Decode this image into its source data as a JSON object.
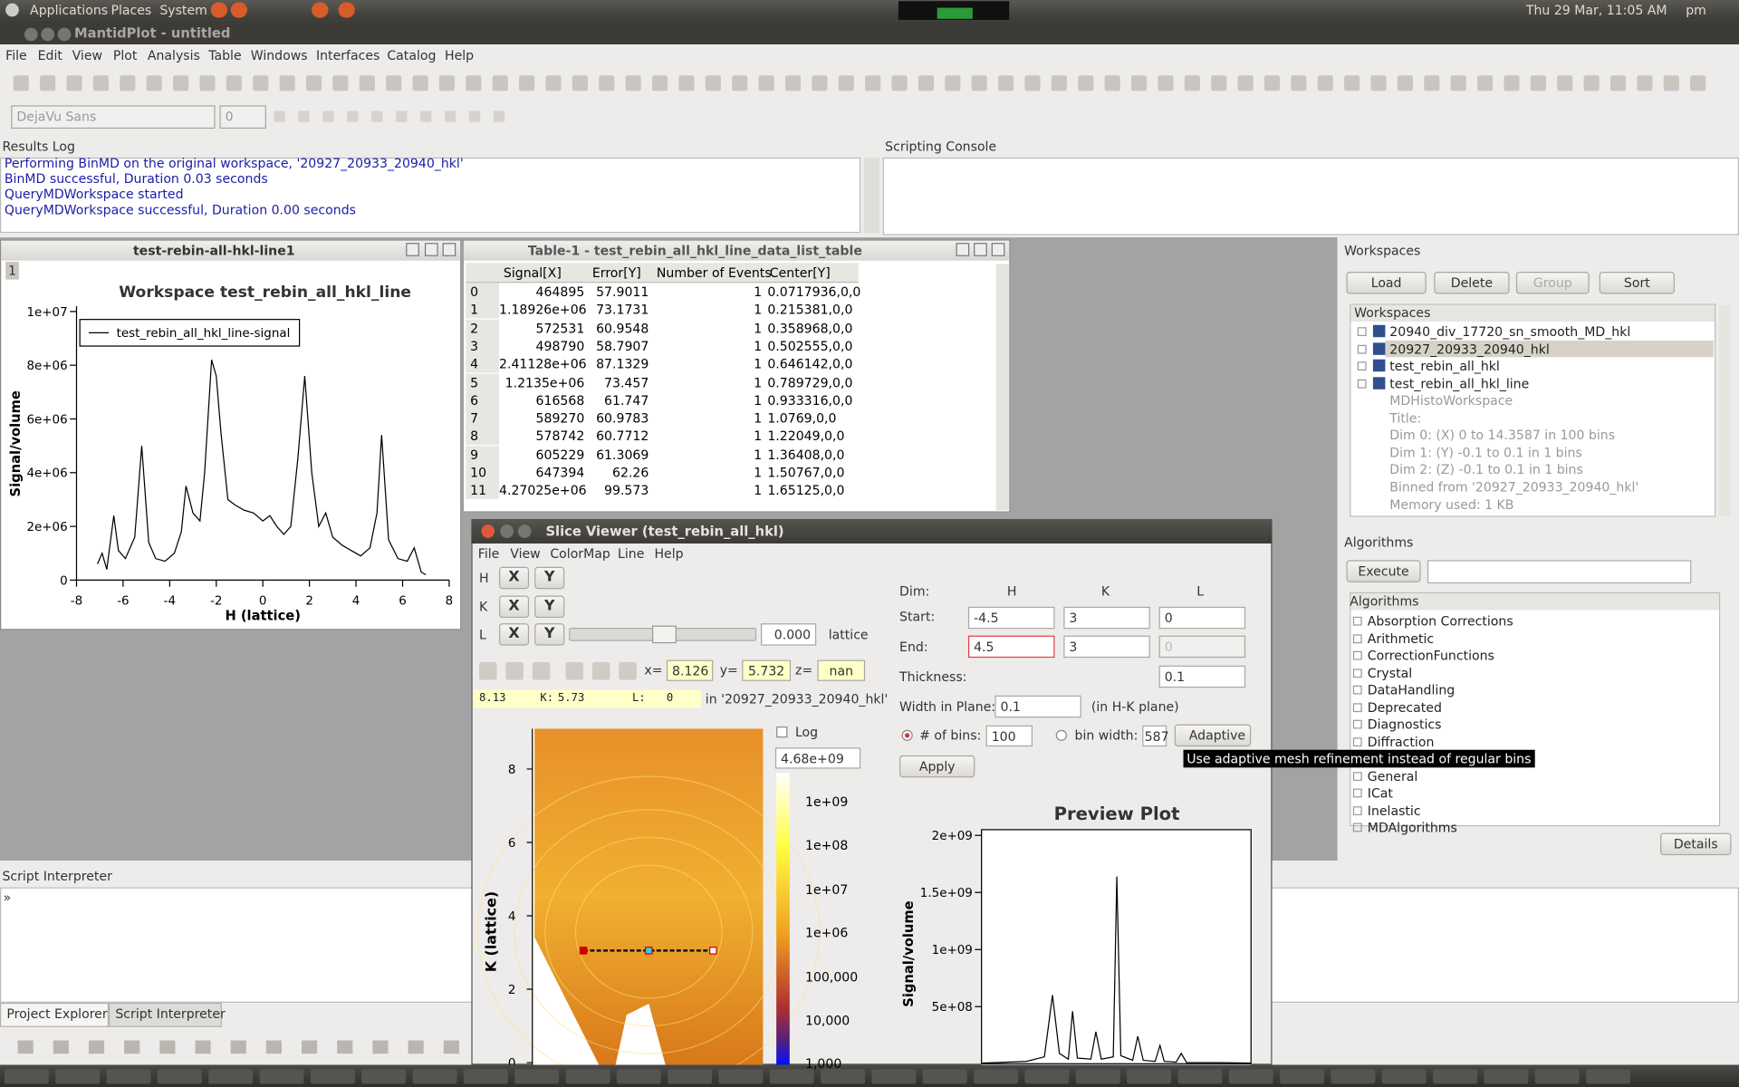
{
  "top_panel": {
    "menus": [
      "Applications",
      "Places",
      "System"
    ],
    "clock": "Thu 29 Mar, 11:05 AM",
    "user": "pm"
  },
  "window_title": "MantidPlot - untitled",
  "menu_bar": [
    "File",
    "Edit",
    "View",
    "Plot",
    "Analysis",
    "Table",
    "Windows",
    "Interfaces",
    "Catalog",
    "Help"
  ],
  "format_bar": {
    "font": "DejaVu Sans",
    "size": "0"
  },
  "results_log": {
    "title": "Results Log",
    "lines": [
      "Performing BinMD on the original workspace, '20927_20933_20940_hkl'",
      "BinMD successful, Duration 0.03 seconds",
      "QueryMDWorkspace started",
      "QueryMDWorkspace successful, Duration 0.00 seconds"
    ]
  },
  "scripting_console": {
    "title": "Scripting Console"
  },
  "plot_window": {
    "title": "test-rebin-all-hkl-line1",
    "index": "1",
    "chart_data": {
      "type": "line",
      "title": "Workspace test_rebin_all_hkl_line",
      "xlabel": "H (lattice)",
      "ylabel": "Signal/volume",
      "xlim": [
        -8,
        8
      ],
      "ylim": [
        0,
        10200000
      ],
      "xticks": [
        -8,
        -6,
        -4,
        -2,
        0,
        2,
        4,
        6,
        8
      ],
      "yticks": [
        0,
        {
          "value": 2000000,
          "label": "2e+06"
        },
        {
          "value": 4000000,
          "label": "4e+06"
        },
        {
          "value": 6000000,
          "label": "6e+06"
        },
        {
          "value": 8000000,
          "label": "8e+06"
        },
        {
          "value": 10000000,
          "label": "1e+07"
        }
      ],
      "series": [
        {
          "name": "test_rebin_all_hkl_line-signal",
          "color": "#000000",
          "x": [
            -7.1,
            -6.9,
            -6.7,
            -6.4,
            -6.2,
            -5.9,
            -5.5,
            -5.2,
            -4.9,
            -4.6,
            -4.2,
            -3.8,
            -3.5,
            -3.3,
            -3.0,
            -2.7,
            -2.5,
            -2.2,
            -2.0,
            -1.8,
            -1.5,
            -1.2,
            -0.8,
            -0.4,
            0.0,
            0.3,
            0.6,
            0.9,
            1.2,
            1.5,
            1.8,
            2.1,
            2.4,
            2.7,
            3.0,
            3.4,
            3.8,
            4.2,
            4.6,
            4.9,
            5.1,
            5.4,
            5.8,
            6.2,
            6.5,
            6.8,
            7.0
          ],
          "values": [
            600000,
            1000000,
            400000,
            2400000,
            1100000,
            800000,
            1600000,
            5000000,
            1400000,
            800000,
            700000,
            1000000,
            1800000,
            3500000,
            2500000,
            2200000,
            4000000,
            8200000,
            7600000,
            5500000,
            3000000,
            2800000,
            2600000,
            2500000,
            2200000,
            2400000,
            2000000,
            1700000,
            2000000,
            4500000,
            7600000,
            4000000,
            2000000,
            2500000,
            1600000,
            1300000,
            1100000,
            900000,
            1200000,
            2500000,
            5400000,
            1500000,
            800000,
            700000,
            1200000,
            300000,
            200000
          ]
        }
      ]
    }
  },
  "table_window": {
    "title": "Table-1 - test_rebin_all_hkl_line_data_list_table",
    "columns": [
      "Signal[X]",
      "Error[Y]",
      "Number of Events",
      "Center[Y]"
    ],
    "rows": [
      [
        "0",
        "464895",
        "57.9011",
        "1",
        "0.0717936,0,0"
      ],
      [
        "1",
        "1.18926e+06",
        "73.1731",
        "1",
        "0.215381,0,0"
      ],
      [
        "2",
        "572531",
        "60.9548",
        "1",
        "0.358968,0,0"
      ],
      [
        "3",
        "498790",
        "58.7907",
        "1",
        "0.502555,0,0"
      ],
      [
        "4",
        "2.41128e+06",
        "87.1329",
        "1",
        "0.646142,0,0"
      ],
      [
        "5",
        "1.2135e+06",
        "73.457",
        "1",
        "0.789729,0,0"
      ],
      [
        "6",
        "616568",
        "61.747",
        "1",
        "0.933316,0,0"
      ],
      [
        "7",
        "589270",
        "60.9783",
        "1",
        "1.0769,0,0"
      ],
      [
        "8",
        "578742",
        "60.7712",
        "1",
        "1.22049,0,0"
      ],
      [
        "9",
        "605229",
        "61.3069",
        "1",
        "1.36408,0,0"
      ],
      [
        "10",
        "647394",
        "62.26",
        "1",
        "1.50767,0,0"
      ],
      [
        "11",
        "4.27025e+06",
        "99.573",
        "1",
        "1.65125,0,0"
      ]
    ]
  },
  "workspaces": {
    "title": "Workspaces",
    "buttons": [
      "Load",
      "Delete",
      "Group",
      "Sort"
    ],
    "header": "Workspaces",
    "items": [
      "20940_div_17720_sn_smooth_MD_hkl",
      "20927_20933_20940_hkl",
      "test_rebin_all_hkl",
      "test_rebin_all_hkl_line"
    ],
    "details": [
      "MDHistoWorkspace",
      "Title:",
      "Dim 0: (X) 0 to 14.3587 in 100 bins",
      "Dim 1: (Y) -0.1 to 0.1 in 1 bins",
      "Dim 2: (Z) -0.1 to 0.1 in 1 bins",
      "Binned from '20927_20933_20940_hkl'",
      "Memory used: 1 KB"
    ]
  },
  "algorithms": {
    "title": "Algorithms",
    "execute": "Execute",
    "header": "Algorithms",
    "items": [
      "Absorption Corrections",
      "Arithmetic",
      "CorrectionFunctions",
      "Crystal",
      "DataHandling",
      "Deprecated",
      "Diagnostics",
      "Diffraction",
      "General",
      "ICat",
      "Inelastic",
      "MDAlgorithms"
    ],
    "details": "Details"
  },
  "slice_viewer": {
    "title": "Slice Viewer (test_rebin_all_hkl)",
    "menus": [
      "File",
      "View",
      "ColorMap",
      "Line",
      "Help"
    ],
    "dims": [
      "H",
      "K",
      "L"
    ],
    "axis_buttons": [
      "X",
      "Y"
    ],
    "slice_value": "0.000",
    "slice_unit": "lattice",
    "coords": {
      "x_label": "x=",
      "x": "8.126",
      "y_label": "y=",
      "y": "5.732",
      "z_label": "z=",
      "z": "nan"
    },
    "status": {
      "h": "8.13",
      "k_label": "K:",
      "k": "5.73",
      "l_label": "L:",
      "l": "0",
      "source": "in '20927_20933_20940_hkl'"
    },
    "log": "Log",
    "color_max": "4.68e+09",
    "colorbar_labels": [
      "1e+09",
      "1e+08",
      "1e+07",
      "1e+06",
      "100,000",
      "10,000",
      "1,000"
    ],
    "image_ylabel": "K (lattice)",
    "image_ylim": [
      0,
      8.1
    ],
    "image_yticks": [
      0,
      2,
      4,
      6,
      8
    ],
    "line": {
      "dim": "Dim:",
      "dim_headers": [
        "H",
        "K",
        "L"
      ],
      "start_label": "Start:",
      "start": [
        "-4.5",
        "3",
        "0"
      ],
      "end_label": "End:",
      "end": [
        "4.5",
        "3",
        "0"
      ],
      "thickness_label": "Thickness:",
      "thickness": "0.1",
      "width_label": "Width in Plane:",
      "width": "0.1",
      "width_unit": "(in H-K plane)",
      "bins_label": "# of bins:",
      "bins": "100",
      "bin_width_label": "bin width:",
      "bin_width": "587",
      "adaptive": "Adaptive",
      "tooltip": "Use adaptive mesh refinement instead of regular bins",
      "apply": "Apply"
    },
    "preview": {
      "chart_data": {
        "type": "line",
        "title": "Preview Plot",
        "ylabel": "Signal/volume",
        "xlim": [
          -4.5,
          4.5
        ],
        "ylim": [
          0,
          2050000000
        ],
        "yticks": [
          {
            "value": 500000000,
            "label": "5e+08"
          },
          {
            "value": 1000000000,
            "label": "1e+09"
          },
          {
            "value": 1500000000,
            "label": "1.5e+09"
          },
          {
            "value": 2000000000,
            "label": "2e+09"
          }
        ],
        "series": [
          {
            "color": "#000000",
            "x": [
              -4.5,
              -3,
              -2.4,
              -2.13,
              -1.9,
              -1.6,
              -1.46,
              -1.3,
              -0.85,
              -0.68,
              -0.5,
              -0.1,
              0.02,
              0.15,
              0.55,
              0.72,
              0.9,
              1.3,
              1.46,
              1.6,
              2.0,
              2.17,
              2.35,
              3.5,
              4.5
            ],
            "values": [
              5000000,
              20000000,
              60000000,
              600000000,
              90000000,
              40000000,
              460000000,
              50000000,
              40000000,
              280000000,
              40000000,
              60000000,
              1640000000,
              70000000,
              30000000,
              240000000,
              30000000,
              20000000,
              160000000,
              20000000,
              15000000,
              90000000,
              10000000,
              10000000,
              5000000
            ]
          }
        ]
      }
    }
  },
  "script_interpreter": {
    "title": "Script Interpreter",
    "prompt": "»"
  },
  "tabs": [
    "Project Explorer",
    "Script Interpreter"
  ]
}
